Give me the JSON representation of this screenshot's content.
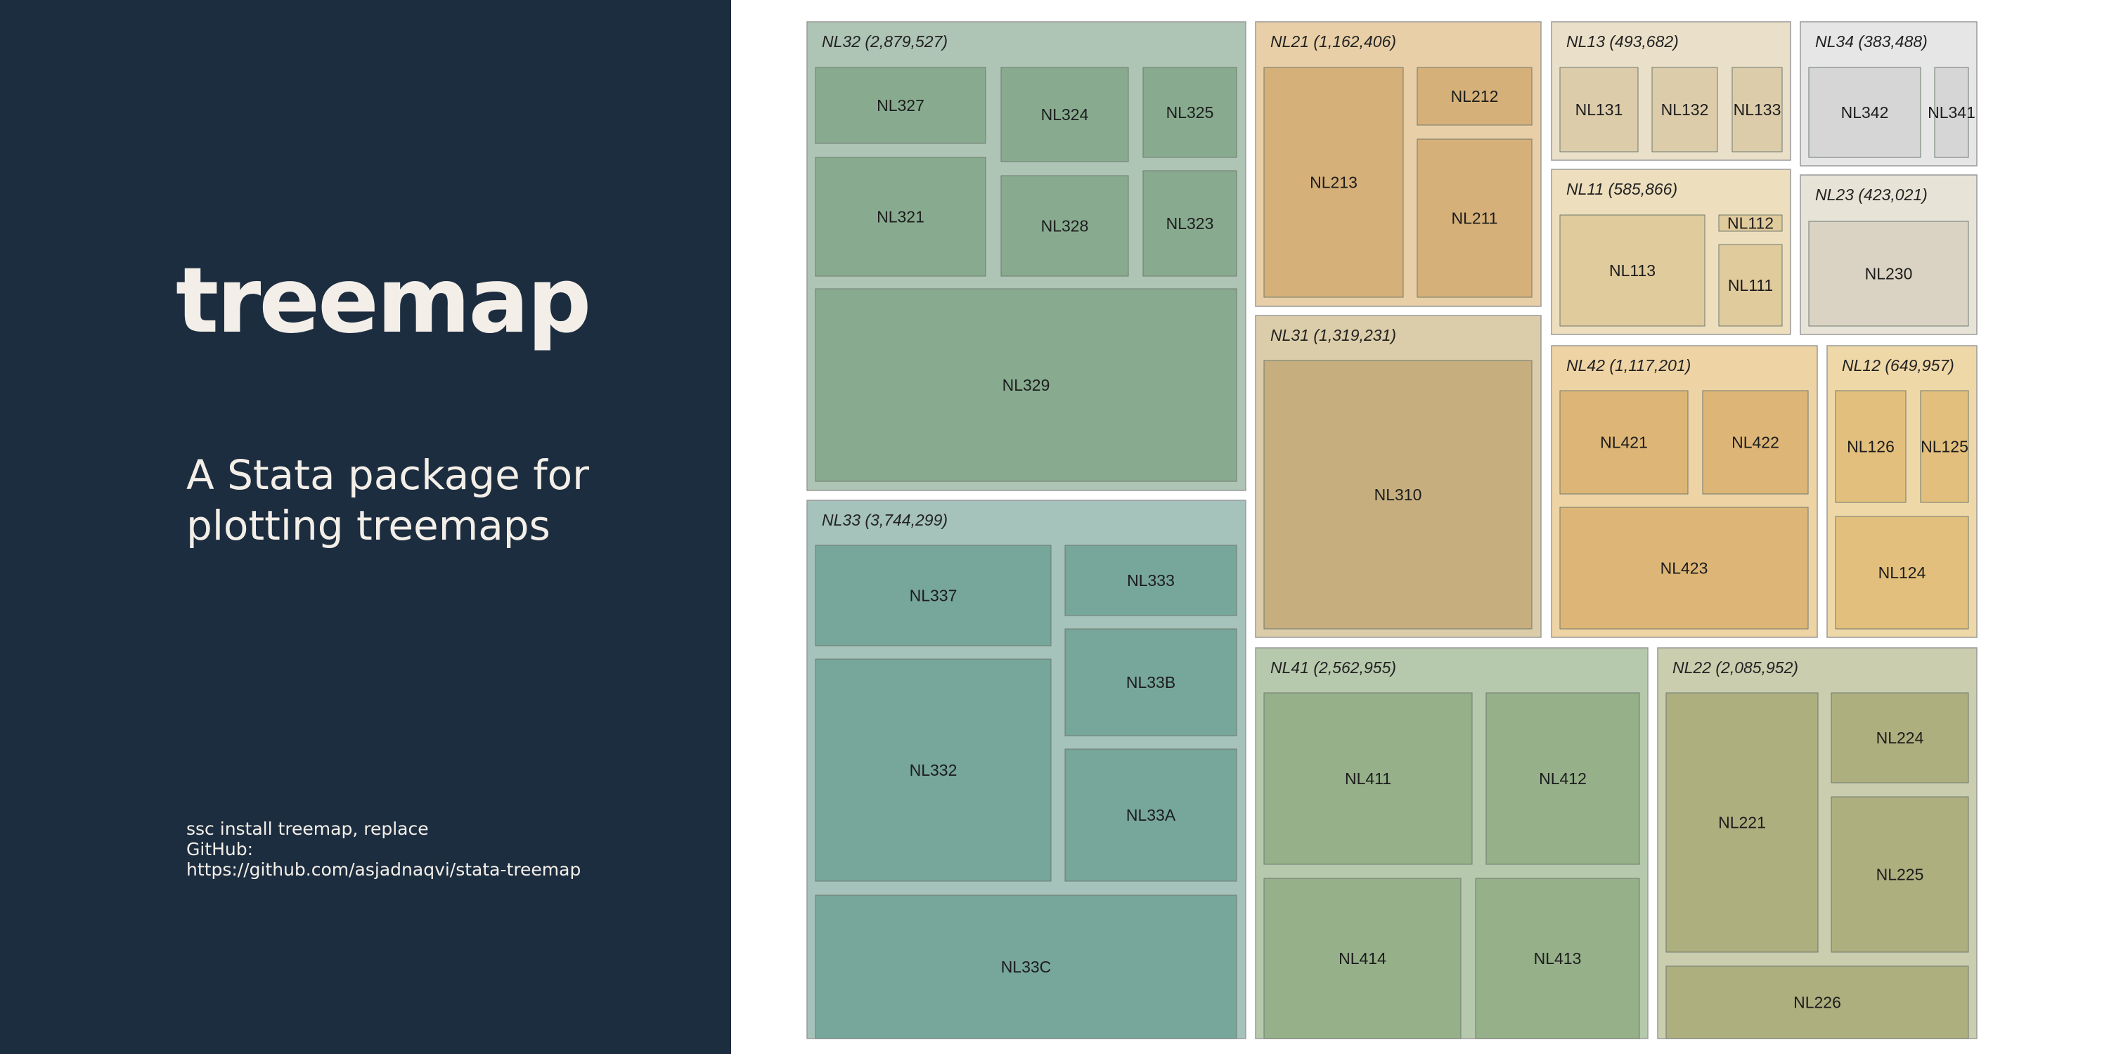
{
  "left": {
    "title": "treemap",
    "subtitle": "A Stata package for plotting treemaps",
    "install": "ssc install treemap, replace",
    "github_label": "GitHub:",
    "github_url": "https://github.com/asjadnaqvi/stata-treemap"
  },
  "chart_data": {
    "type": "treemap",
    "groups": [
      {
        "label": "NL32 (2,879,527)",
        "name": "NL32",
        "value": 2879527,
        "color": "#aec4b5",
        "child_color": "#88ab90",
        "children": [
          "NL327",
          "NL324",
          "NL325",
          "NL321",
          "NL328",
          "NL323",
          "NL329"
        ]
      },
      {
        "label": "NL33 (3,744,299)",
        "name": "NL33",
        "value": 3744299,
        "color": "#a5c2bb",
        "child_color": "#77a69a",
        "children": [
          "NL337",
          "NL333",
          "NL33B",
          "NL332",
          "NL33A",
          "NL33C"
        ]
      },
      {
        "label": "NL21 (1,162,406)",
        "name": "NL21",
        "value": 1162406,
        "color": "#e8cfa7",
        "child_color": "#d6b079",
        "children": [
          "NL213",
          "NL212",
          "NL211"
        ]
      },
      {
        "label": "NL31 (1,319,231)",
        "name": "NL31",
        "value": 1319231,
        "color": "#dccdaa",
        "child_color": "#c6ae7e",
        "children": [
          "NL310"
        ]
      },
      {
        "label": "NL13 (493,682)",
        "name": "NL13",
        "value": 493682,
        "color": "#eadfc8",
        "child_color": "#dcccaa",
        "children": [
          "NL131",
          "NL132",
          "NL133"
        ]
      },
      {
        "label": "NL34 (383,488)",
        "name": "NL34",
        "value": 383488,
        "color": "#e6e6e6",
        "child_color": "#d6d6d6",
        "children": [
          "NL342",
          "NL341"
        ]
      },
      {
        "label": "NL11 (585,866)",
        "name": "NL11",
        "value": 585866,
        "color": "#eddfbd",
        "child_color": "#e0cb9d",
        "children": [
          "NL113",
          "NL112",
          "NL111"
        ]
      },
      {
        "label": "NL23 (423,021)",
        "name": "NL23",
        "value": 423021,
        "color": "#e8e3d7",
        "child_color": "#dad3c3",
        "children": [
          "NL230"
        ]
      },
      {
        "label": "NL42 (1,117,201)",
        "name": "NL42",
        "value": 1117201,
        "color": "#eed3a4",
        "child_color": "#ddb677",
        "children": [
          "NL421",
          "NL422",
          "NL423"
        ]
      },
      {
        "label": "NL12 (649,957)",
        "name": "NL12",
        "value": 649957,
        "color": "#efd8a8",
        "child_color": "#e2bf7c",
        "children": [
          "NL126",
          "NL125",
          "NL124"
        ]
      },
      {
        "label": "NL41 (2,562,955)",
        "name": "NL41",
        "value": 2562955,
        "color": "#b7c9ad",
        "child_color": "#96b08a",
        "children": [
          "NL411",
          "NL412",
          "NL414",
          "NL413"
        ]
      },
      {
        "label": "NL22 (2,085,952)",
        "name": "NL22",
        "value": 2085952,
        "color": "#cacdae",
        "child_color": "#adaf7f",
        "children": [
          "NL221",
          "NL224",
          "NL225",
          "NL226"
        ]
      }
    ]
  }
}
